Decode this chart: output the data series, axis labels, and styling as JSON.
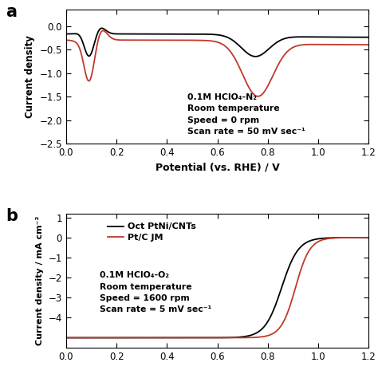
{
  "panel_a": {
    "xlabel": "Potential (vs. RHE) / V",
    "ylabel": "Current density",
    "annotation_line1": "0.1M HClO₄-N₂",
    "annotation_line2": "Room temperature",
    "annotation_line3": "Speed = 0 rpm",
    "annotation_line4": "Scan rate = 50 mV sec⁻¹",
    "xlim": [
      0.0,
      1.2
    ],
    "ylim": [
      -2.5,
      0.35
    ],
    "yticks": [
      0.0,
      -0.5,
      -1.0,
      -1.5,
      -2.0,
      -2.5
    ],
    "xticks": [
      0.0,
      0.2,
      0.4,
      0.6,
      0.8,
      1.0,
      1.2
    ],
    "black_color": "#000000",
    "red_color": "#c0392b"
  },
  "panel_b": {
    "ylabel": "Current density / mA cm⁻²",
    "annotation_line1": "0.1M HClO₄-O₂",
    "annotation_line2": "Room temperature",
    "annotation_line3": "Speed = 1600 rpm",
    "annotation_line4": "Scan rate = 5 mV sec⁻¹",
    "legend_label1": "Oct PtNi/CNTs",
    "legend_label2": "Pt/C JM",
    "xlim": [
      0.0,
      1.2
    ],
    "ylim": [
      -5.5,
      1.2
    ],
    "yticks": [
      1,
      0,
      -1,
      -2,
      -3,
      -4
    ],
    "xticks": [
      0.0,
      0.2,
      0.4,
      0.6,
      0.8,
      1.0,
      1.2
    ],
    "black_color": "#000000",
    "red_color": "#c0392b"
  }
}
